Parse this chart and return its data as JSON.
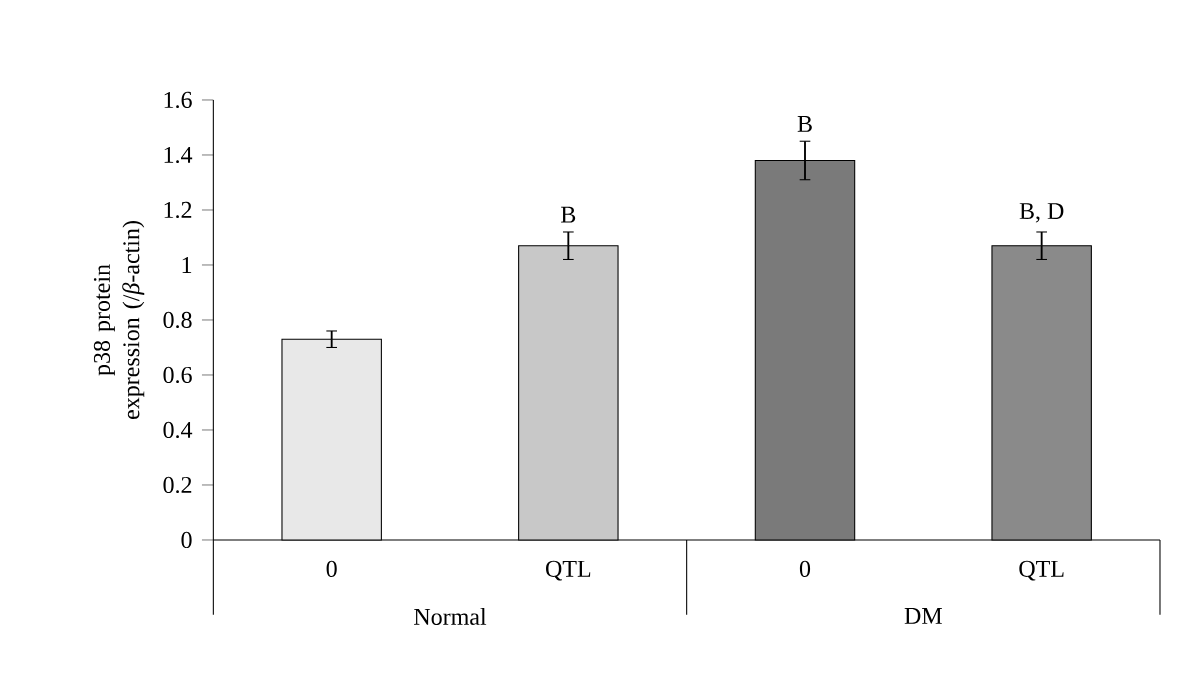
{
  "chart_data": {
    "type": "bar",
    "ylabel": "p38 protein expression (/*β*-actin)",
    "categories": [
      "0",
      "QTL",
      "0",
      "QTL"
    ],
    "values": [
      0.73,
      1.07,
      1.38,
      1.07
    ],
    "errors": [
      0.03,
      0.05,
      0.07,
      0.05
    ],
    "colors": [
      "#e8e8e8",
      "#c8c8c8",
      "#7a7a7a",
      "#8a8a8a"
    ],
    "ylim": [
      0,
      1.6
    ],
    "yticks": [
      0,
      0.2,
      0.4,
      0.6,
      0.8,
      1,
      1.2,
      1.4,
      1.6
    ],
    "value_labels": [
      null,
      "B",
      "B",
      "B, D"
    ],
    "annotations": [
      "Normal",
      "DM"
    ],
    "grid": false
  }
}
